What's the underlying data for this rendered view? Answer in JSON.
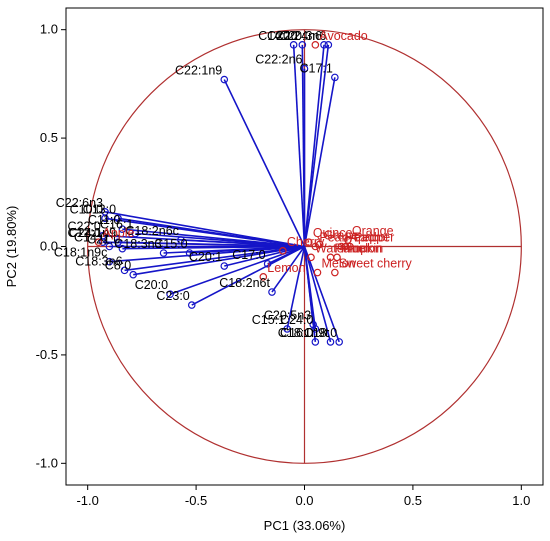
{
  "chart_data": {
    "type": "scatter",
    "subtype": "pca-biplot",
    "xlabel": "PC1 (33.06%)",
    "ylabel": "PC2 (19.80%)",
    "xlim": [
      -1.1,
      1.1
    ],
    "ylim": [
      -1.1,
      1.1
    ],
    "xticks": [
      -1.0,
      -0.5,
      0.0,
      0.5,
      1.0
    ],
    "yticks": [
      -1.0,
      -0.5,
      0.0,
      0.5,
      1.0
    ],
    "xtick_labels": [
      "-1.0",
      "-0.5",
      "0.0",
      "0.5",
      "1.0"
    ],
    "ytick_labels": [
      "-1.0",
      "-0.5",
      "0.0",
      "0.5",
      "1.0"
    ],
    "grid": false,
    "unit_circle": true,
    "colors": {
      "variables": "#1515c8",
      "samples": "#cc2222",
      "circle": "#b03030",
      "axes": "#b03030"
    },
    "variables": [
      {
        "label": "C14:1",
        "x": -0.05,
        "y": 0.93
      },
      {
        "label": "C20:4n6",
        "x": 0.09,
        "y": 0.93
      },
      {
        "label": "C20:3n6",
        "x": 0.11,
        "y": 0.93
      },
      {
        "label": "C20:2",
        "x": -0.01,
        "y": 0.93
      },
      {
        "label": "C17:1",
        "x": 0.14,
        "y": 0.78
      },
      {
        "label": "C22:1n9",
        "x": -0.37,
        "y": 0.77
      },
      {
        "label": "C22:2n6",
        "x": 0.0,
        "y": 0.82
      },
      {
        "label": "C22:6n3",
        "x": -0.92,
        "y": 0.16
      },
      {
        "label": "C10:0",
        "x": -0.92,
        "y": 0.13
      },
      {
        "label": "C13:0",
        "x": -0.86,
        "y": 0.13
      },
      {
        "label": "C22:0",
        "x": -0.93,
        "y": 0.05
      },
      {
        "label": "C11:0",
        "x": -0.84,
        "y": 0.08
      },
      {
        "label": "C16:1",
        "x": -0.78,
        "y": 0.06
      },
      {
        "label": "C12:0",
        "x": -0.93,
        "y": 0.02
      },
      {
        "label": "C24:1n9",
        "x": -0.86,
        "y": 0.02
      },
      {
        "label": "C18:2n6c",
        "x": -0.57,
        "y": 0.03
      },
      {
        "label": "C14:0",
        "x": -0.9,
        "y": 0.0
      },
      {
        "label": "C21:0",
        "x": -0.84,
        "y": -0.01
      },
      {
        "label": "C18:3n3",
        "x": -0.65,
        "y": -0.03
      },
      {
        "label": "C15:0",
        "x": -0.53,
        "y": -0.03
      },
      {
        "label": "C18:1n9c",
        "x": -0.9,
        "y": -0.07
      },
      {
        "label": "C18:3n6",
        "x": -0.83,
        "y": -0.11
      },
      {
        "label": "C8:0",
        "x": -0.79,
        "y": -0.13
      },
      {
        "label": "C20:1",
        "x": -0.37,
        "y": -0.09
      },
      {
        "label": "C17:0",
        "x": -0.17,
        "y": -0.08
      },
      {
        "label": "C20:0",
        "x": -0.62,
        "y": -0.22
      },
      {
        "label": "C23:0",
        "x": -0.52,
        "y": -0.27
      },
      {
        "label": "C18:2n6t",
        "x": -0.15,
        "y": -0.21
      },
      {
        "label": "C15:1",
        "x": -0.08,
        "y": -0.38
      },
      {
        "label": "C20:5n3",
        "x": 0.04,
        "y": -0.36
      },
      {
        "label": "C24:0",
        "x": 0.05,
        "y": -0.38
      },
      {
        "label": "C18:1n9t",
        "x": 0.12,
        "y": -0.44
      },
      {
        "label": "C16:0",
        "x": 0.05,
        "y": -0.44
      },
      {
        "label": "C18:0",
        "x": 0.16,
        "y": -0.44
      }
    ],
    "samples": [
      {
        "label": "Avocado",
        "x": 0.05,
        "y": 0.93
      },
      {
        "label": "Pear",
        "x": 0.05,
        "y": 0.0
      },
      {
        "label": "Grape",
        "x": 0.07,
        "y": 0.01
      },
      {
        "label": "Orange",
        "x": 0.2,
        "y": 0.03
      },
      {
        "label": "Quince",
        "x": 0.02,
        "y": 0.02
      },
      {
        "label": "Peach",
        "x": 0.17,
        "y": 0.0
      },
      {
        "label": "Pepper",
        "x": 0.21,
        "y": 0.0
      },
      {
        "label": "Apricot",
        "x": 0.19,
        "y": 0.0
      },
      {
        "label": "Apple",
        "x": -0.95,
        "y": 0.02
      },
      {
        "label": "Cherry",
        "x": -0.1,
        "y": -0.02
      },
      {
        "label": "Lemon",
        "x": -0.19,
        "y": -0.14
      },
      {
        "label": "Watermelon",
        "x": 0.03,
        "y": -0.05
      },
      {
        "label": "Plum",
        "x": 0.15,
        "y": -0.05
      },
      {
        "label": "Melon",
        "x": 0.06,
        "y": -0.12
      },
      {
        "label": "Pumpkin",
        "x": 0.12,
        "y": -0.05
      },
      {
        "label": "Sweet cherry",
        "x": 0.14,
        "y": -0.12
      }
    ]
  }
}
